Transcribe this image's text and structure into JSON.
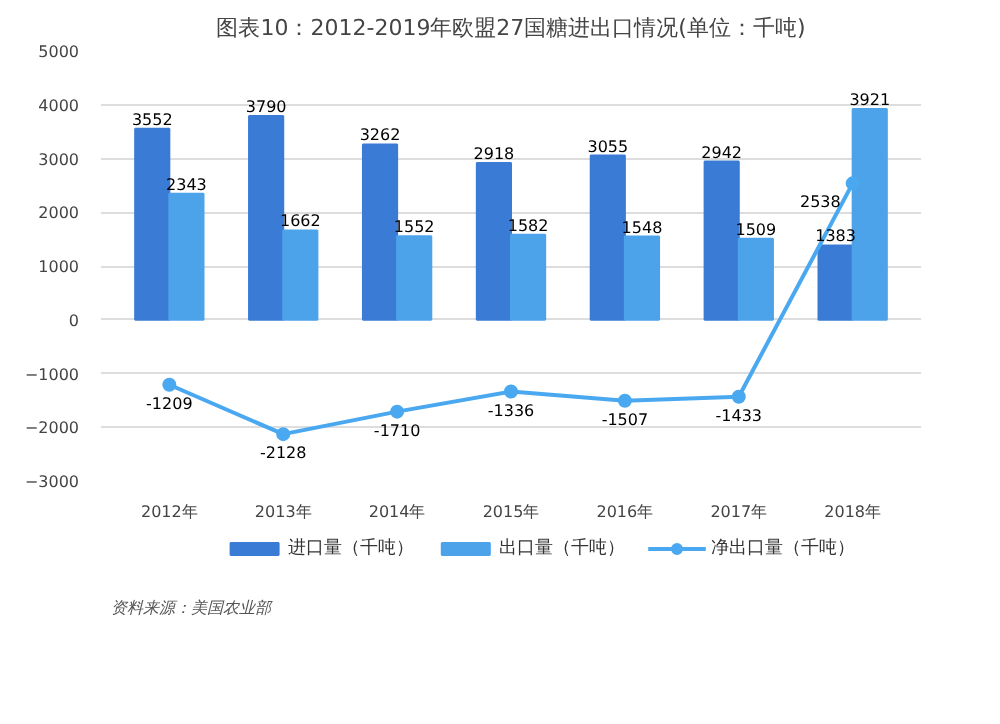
{
  "chart_data": {
    "type": "bar",
    "title": "图表10：2012-2019年欧盟27国糖进出口情况(单位：千吨)",
    "categories": [
      "2012年",
      "2013年",
      "2014年",
      "2015年",
      "2016年",
      "2017年",
      "2018年"
    ],
    "series": [
      {
        "name": "进口量（千吨）",
        "color": "#3a7bd5",
        "values": [
          3552,
          3790,
          3262,
          2918,
          3055,
          2942,
          1383
        ]
      },
      {
        "name": "出口量（千吨）",
        "color": "#4da3ea",
        "values": [
          2343,
          1662,
          1552,
          1582,
          1548,
          1509,
          3921
        ]
      },
      {
        "name": "净出口量（千吨）",
        "type": "line",
        "color": "#4aa8f0",
        "marker": "circle",
        "values": [
          -1209,
          -2128,
          -1710,
          -1336,
          -1507,
          -1433,
          2538
        ]
      }
    ],
    "ylim": [
      -3000,
      5000
    ],
    "yticks": [
      -3000,
      -2000,
      -1000,
      0,
      1000,
      2000,
      3000,
      4000,
      5000
    ],
    "grid": "y",
    "legend": "bottom",
    "data_labels": true,
    "annotations": [
      "资料来源：美国农业部"
    ]
  }
}
